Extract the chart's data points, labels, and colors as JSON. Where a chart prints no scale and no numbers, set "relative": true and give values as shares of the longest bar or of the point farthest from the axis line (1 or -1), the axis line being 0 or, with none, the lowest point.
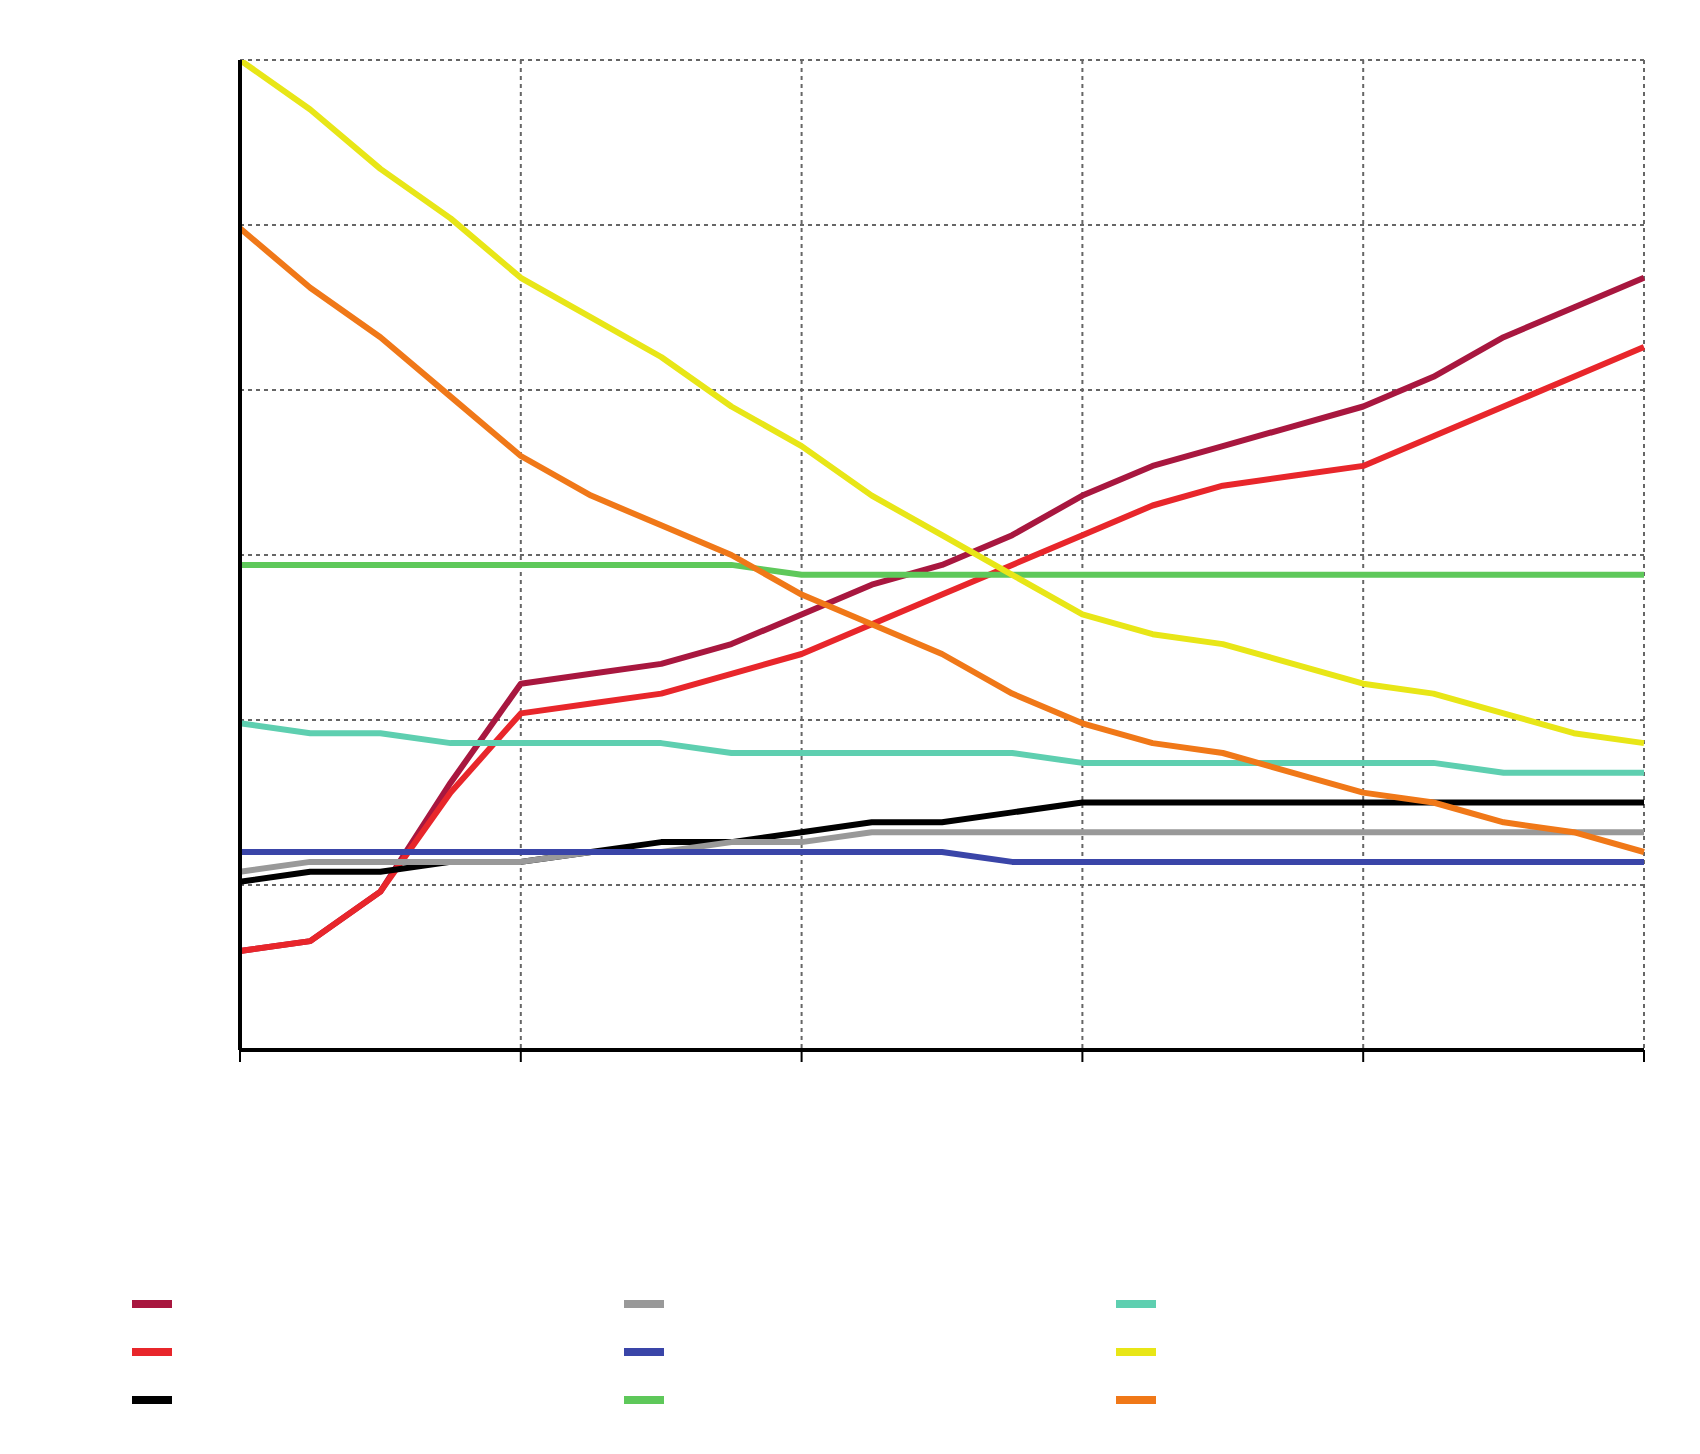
{
  "chart_data": {
    "type": "line",
    "relative": true,
    "grid": true,
    "marker": "none",
    "line_style": "solid",
    "categories": [
      null,
      null,
      null,
      null,
      null,
      null,
      null,
      null,
      null,
      null,
      null,
      null,
      null,
      null,
      null,
      null,
      null,
      null,
      null,
      null,
      null
    ],
    "series": [
      {
        "color": "#a8173f",
        "values": [
          0.1,
          0.11,
          0.16,
          0.27,
          0.37,
          0.38,
          0.39,
          0.41,
          0.44,
          0.47,
          0.49,
          0.52,
          0.56,
          0.59,
          0.61,
          0.63,
          0.65,
          0.68,
          0.72,
          0.75,
          0.78
        ]
      },
      {
        "color": "#e8262b",
        "values": [
          0.1,
          0.11,
          0.16,
          0.26,
          0.34,
          0.35,
          0.36,
          0.38,
          0.4,
          0.43,
          0.46,
          0.49,
          0.52,
          0.55,
          0.57,
          0.58,
          0.59,
          0.62,
          0.65,
          0.68,
          0.71
        ]
      },
      {
        "color": "#000000",
        "values": [
          0.17,
          0.18,
          0.18,
          0.19,
          0.19,
          0.2,
          0.21,
          0.21,
          0.22,
          0.23,
          0.23,
          0.24,
          0.25,
          0.25,
          0.25,
          0.25,
          0.25,
          0.25,
          0.25,
          0.25,
          0.25
        ]
      },
      {
        "color": "#999999",
        "values": [
          0.18,
          0.19,
          0.19,
          0.19,
          0.19,
          0.2,
          0.2,
          0.21,
          0.21,
          0.22,
          0.22,
          0.22,
          0.22,
          0.22,
          0.22,
          0.22,
          0.22,
          0.22,
          0.22,
          0.22,
          0.22
        ]
      },
      {
        "color": "#3a45a8",
        "values": [
          0.2,
          0.2,
          0.2,
          0.2,
          0.2,
          0.2,
          0.2,
          0.2,
          0.2,
          0.2,
          0.2,
          0.19,
          0.19,
          0.19,
          0.19,
          0.19,
          0.19,
          0.19,
          0.19,
          0.19,
          0.19
        ]
      },
      {
        "color": "#5ec85a",
        "values": [
          0.49,
          0.49,
          0.49,
          0.49,
          0.49,
          0.49,
          0.49,
          0.49,
          0.48,
          0.48,
          0.48,
          0.48,
          0.48,
          0.48,
          0.48,
          0.48,
          0.48,
          0.48,
          0.48,
          0.48,
          0.48
        ]
      },
      {
        "color": "#5ecfb0",
        "values": [
          0.33,
          0.32,
          0.32,
          0.31,
          0.31,
          0.31,
          0.31,
          0.3,
          0.3,
          0.3,
          0.3,
          0.3,
          0.29,
          0.29,
          0.29,
          0.29,
          0.29,
          0.29,
          0.28,
          0.28,
          0.28
        ]
      },
      {
        "color": "#e8e617",
        "values": [
          1,
          0.95,
          0.89,
          0.84,
          0.78,
          0.74,
          0.7,
          0.65,
          0.61,
          0.56,
          0.52,
          0.48,
          0.44,
          0.42,
          0.41,
          0.39,
          0.37,
          0.36,
          0.34,
          0.32,
          0.31
        ]
      },
      {
        "color": "#f07818",
        "values": [
          0.83,
          0.77,
          0.72,
          0.66,
          0.6,
          0.56,
          0.53,
          0.5,
          0.46,
          0.43,
          0.4,
          0.36,
          0.33,
          0.31,
          0.3,
          0.28,
          0.26,
          0.25,
          0.23,
          0.22,
          0.2
        ]
      }
    ]
  }
}
